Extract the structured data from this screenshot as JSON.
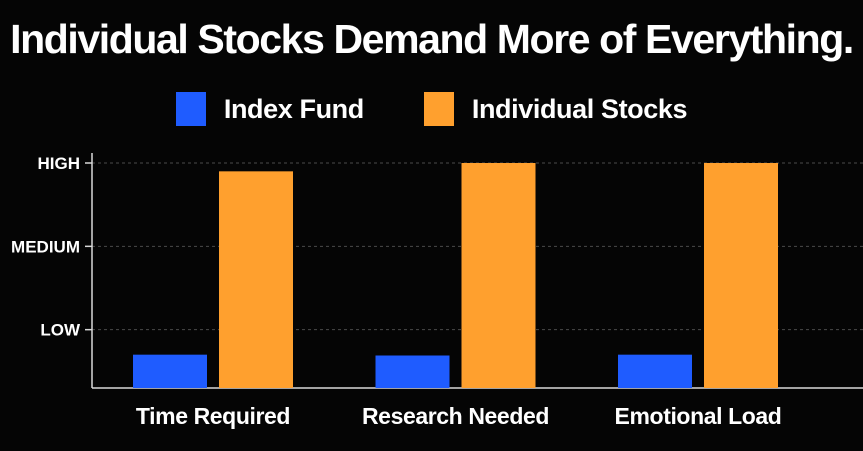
{
  "chart_data": {
    "type": "bar",
    "title": "Individual Stocks Demand More of Everything.",
    "categories": [
      "Time Required",
      "Research Needed",
      "Emotional Load"
    ],
    "series": [
      {
        "name": "Index Fund",
        "values": [
          0.7,
          0.69,
          0.7
        ]
      },
      {
        "name": "Individual Stocks",
        "values": [
          2.9,
          3.0,
          3.0
        ]
      }
    ],
    "y_ticks": [
      {
        "value": 1,
        "label": "LOW"
      },
      {
        "value": 2,
        "label": "MEDIUM"
      },
      {
        "value": 3,
        "label": "HIGH"
      }
    ],
    "ylim": [
      0.3,
      3.0
    ],
    "xlabel": "",
    "ylabel": "",
    "grid": true,
    "legend_position": "top-center",
    "colors": {
      "Index Fund": "#1f5cff",
      "Individual Stocks": "#ffa02e"
    }
  }
}
